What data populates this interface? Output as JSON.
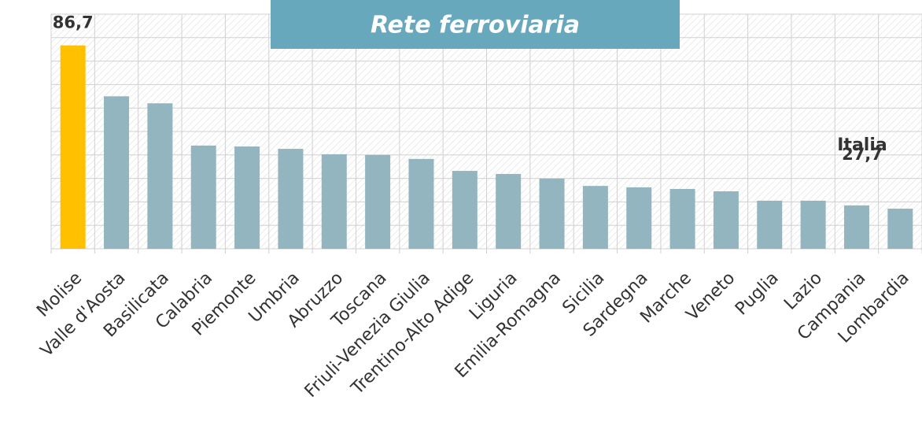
{
  "chart_data": {
    "type": "bar",
    "title": "Rete ferroviaria",
    "categories": [
      "Molise",
      "Valle d'Aosta",
      "Basilicata",
      "Calabria",
      "Piemonte",
      "Umbria",
      "Abruzzo",
      "Toscana",
      "Friuli-Venezia Giulia",
      "Trentino-Alto Adige",
      "Liguria",
      "Emilia-Romagna",
      "Sicilia",
      "Sardegna",
      "Marche",
      "Veneto",
      "Puglia",
      "Lazio",
      "Campania",
      "Lombardia"
    ],
    "values": [
      86.7,
      65,
      62,
      44,
      43.6,
      42.6,
      40.3,
      40,
      38.3,
      33.2,
      31.9,
      29.9,
      26.8,
      26.2,
      25.5,
      24.5,
      20.5,
      20.5,
      18.5,
      17.1
    ],
    "value_labels": [
      "86,7",
      null,
      null,
      null,
      null,
      null,
      null,
      null,
      null,
      null,
      null,
      null,
      null,
      null,
      null,
      null,
      null,
      null,
      null,
      null
    ],
    "colors": [
      "#ffc000",
      "#93b5bf",
      "#93b5bf",
      "#93b5bf",
      "#93b5bf",
      "#93b5bf",
      "#93b5bf",
      "#93b5bf",
      "#93b5bf",
      "#93b5bf",
      "#93b5bf",
      "#93b5bf",
      "#93b5bf",
      "#93b5bf",
      "#93b5bf",
      "#93b5bf",
      "#93b5bf",
      "#93b5bf",
      "#93b5bf",
      "#93b5bf"
    ],
    "reference": {
      "name": "Italia",
      "value": 27.7,
      "label": "27,7",
      "color": "#a8d0d4"
    },
    "ylim": [
      0,
      100
    ],
    "yticks": [
      0,
      10,
      20,
      30,
      40,
      50,
      60,
      70,
      80,
      90,
      100
    ],
    "grid": true
  }
}
